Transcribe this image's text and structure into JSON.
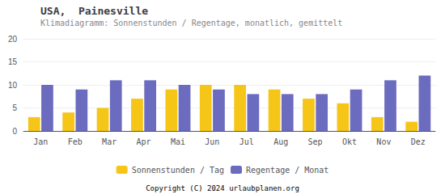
{
  "chart_data": {
    "type": "bar",
    "title": "USA,  Painesville",
    "subtitle": "Klimadiagramm: Sonnenstunden / Regentage, monatlich, gemittelt",
    "categories": [
      "Jan",
      "Feb",
      "Mar",
      "Apr",
      "Mai",
      "Jun",
      "Jul",
      "Aug",
      "Sep",
      "Okt",
      "Nov",
      "Dez"
    ],
    "series": [
      {
        "name": "Sonnenstunden / Tag",
        "color": "#F5C518",
        "values": [
          3,
          4,
          5,
          7,
          9,
          10,
          10,
          9,
          7,
          6,
          3,
          2
        ]
      },
      {
        "name": "Regentage / Monat",
        "color": "#6B6BBF",
        "values": [
          10,
          9,
          11,
          11,
          10,
          9,
          8,
          8,
          8,
          9,
          11,
          12
        ]
      }
    ],
    "ylim": [
      0,
      20
    ],
    "yticks": [
      0,
      5,
      10,
      15,
      20
    ],
    "grid": true,
    "legend": "bottom",
    "annotations": [
      "Copyright (C) 2024 urlaubplanen.org"
    ]
  }
}
